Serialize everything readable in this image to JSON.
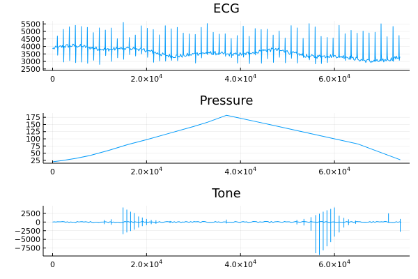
{
  "chart_data": [
    {
      "type": "line",
      "title": "ECG",
      "xlabel": "",
      "ylabel": "",
      "xlim": [
        -2000,
        76000
      ],
      "ylim": [
        2400,
        5700
      ],
      "xticks": [
        0,
        20000,
        40000,
        60000
      ],
      "xtick_labels": [
        {
          "mantissa": "",
          "exponent": ""
        },
        {
          "mantissa": "2.0×10",
          "exponent": "4"
        },
        {
          "mantissa": "4.0×10",
          "exponent": "4"
        },
        {
          "mantissa": "6.0×10",
          "exponent": "4"
        }
      ],
      "yticks": [
        2500,
        3000,
        3500,
        4000,
        4500,
        5000,
        5500
      ],
      "ytick_labels": [
        "2500",
        "3000",
        "3500",
        "4000",
        "4500",
        "5000",
        "5500"
      ],
      "grid": true,
      "color": "#009AFA",
      "x_range": [
        0,
        74000
      ],
      "baseline_start": 3850,
      "baseline_end": 3250,
      "beat_count": 58,
      "peak_range": [
        4500,
        5600
      ],
      "trough_range": [
        2800,
        3500
      ]
    },
    {
      "type": "line",
      "title": "Pressure",
      "xlabel": "",
      "ylabel": "",
      "xlim": [
        -2000,
        76000
      ],
      "ylim": [
        15,
        190
      ],
      "xticks": [
        0,
        20000,
        40000,
        60000
      ],
      "xtick_labels": [
        {
          "mantissa": "",
          "exponent": ""
        },
        {
          "mantissa": "2.0×10",
          "exponent": "4"
        },
        {
          "mantissa": "4.0×10",
          "exponent": "4"
        },
        {
          "mantissa": "6.0×10",
          "exponent": "4"
        }
      ],
      "yticks": [
        25,
        50,
        75,
        100,
        125,
        150,
        175
      ],
      "ytick_labels": [
        "25",
        "50",
        "75",
        "100",
        "125",
        "150",
        "175"
      ],
      "grid": true,
      "color": "#009AFA",
      "x": [
        0,
        2000,
        5000,
        8000,
        12000,
        16000,
        20000,
        25000,
        30000,
        33000,
        37000,
        45000,
        55000,
        65000,
        74000
      ],
      "y": [
        20,
        24,
        32,
        42,
        60,
        80,
        97,
        120,
        143,
        158,
        182,
        154,
        118,
        82,
        27
      ]
    },
    {
      "type": "line",
      "title": "Tone",
      "xlabel": "",
      "ylabel": "",
      "xlim": [
        -2000,
        76000
      ],
      "ylim": [
        -9800,
        4700
      ],
      "xticks": [
        0,
        20000,
        40000,
        60000
      ],
      "xtick_labels": [
        {
          "mantissa": "",
          "exponent": ""
        },
        {
          "mantissa": "2.0×10",
          "exponent": "4"
        },
        {
          "mantissa": "4.0×10",
          "exponent": "4"
        },
        {
          "mantissa": "6.0×10",
          "exponent": "4"
        }
      ],
      "yticks": [
        -7500,
        -5000,
        -2500,
        0,
        2500
      ],
      "ytick_labels": [
        "−7500",
        "−5000",
        "−2500",
        "0",
        "2500"
      ],
      "grid": true,
      "color": "#009AFA",
      "spike_x": [
        11000,
        12500,
        15000,
        15800,
        16600,
        17400,
        18300,
        19100,
        20000,
        21000,
        22000,
        25000,
        37000,
        52000,
        53500,
        55000,
        56000,
        56800,
        57600,
        58400,
        59200,
        60000,
        61000,
        62000,
        63000,
        64500,
        71500,
        74000
      ],
      "spike_up": [
        600,
        800,
        4200,
        3600,
        3000,
        2600,
        1600,
        1300,
        900,
        600,
        500,
        300,
        700,
        600,
        900,
        1400,
        2000,
        2400,
        3000,
        3400,
        3800,
        4200,
        1800,
        1200,
        800,
        400,
        2500,
        900
      ],
      "spike_down": [
        -600,
        -800,
        -3500,
        -3000,
        -2600,
        -2200,
        -1600,
        -1200,
        -900,
        -600,
        -500,
        -300,
        -400,
        -700,
        -1000,
        -2500,
        -9000,
        -9500,
        -8200,
        -7000,
        -5800,
        -4200,
        -3000,
        -1600,
        -900,
        -500,
        -200,
        -2800
      ]
    }
  ]
}
